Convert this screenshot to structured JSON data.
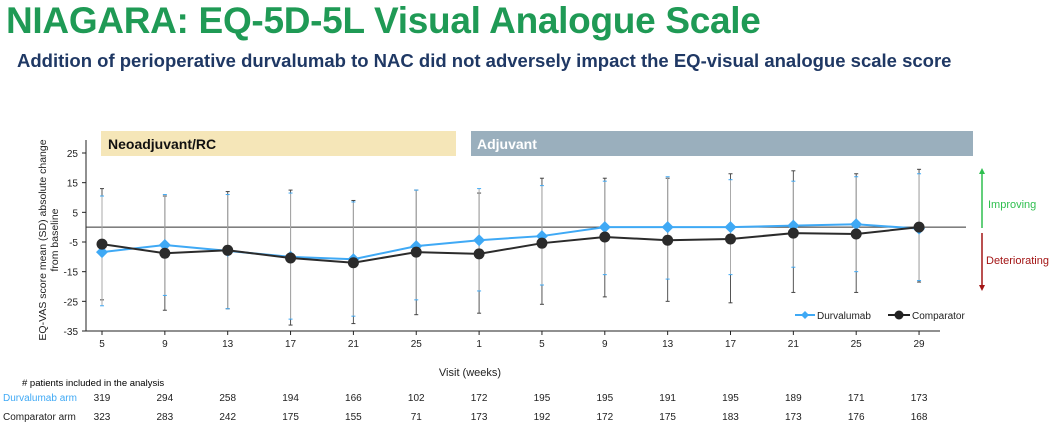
{
  "header": {
    "title": "NIAGARA: EQ-5D-5L Visual Analogue Scale",
    "subtitle": "Addition of perioperative durvalumab to NAC did not adversely impact the EQ-visual analogue scale score"
  },
  "chart_data": {
    "type": "line",
    "ylabel": "EQ-VAS score mean (SD) absolute change from baseline",
    "xlabel": "Visit (weeks)",
    "ylim": [
      -35,
      25
    ],
    "yticks": [
      "25",
      "15",
      "5",
      "-5",
      "-15",
      "-25",
      "-35"
    ],
    "ytick_values": [
      25,
      15,
      5,
      -5,
      -15,
      -25,
      -35
    ],
    "categories": [
      "5",
      "9",
      "13",
      "17",
      "21",
      "25",
      "1",
      "5",
      "9",
      "13",
      "17",
      "21",
      "25",
      "29"
    ],
    "phases": [
      {
        "label": "Neoadjuvant/RC",
        "color": "#f5e6b8"
      },
      {
        "label": "Adjuvant",
        "color": "#9aafbd"
      }
    ],
    "annotations": {
      "improving": "Improving",
      "deteriorating": "Deteriorating"
    },
    "legend_position": "bottom-right",
    "series": [
      {
        "name": "Durvalumab",
        "color": "#3fa9f5",
        "marker": "diamond",
        "values": [
          -8.4,
          -6,
          -8,
          -10,
          -10.8,
          -6.4,
          -4.4,
          -3,
          0,
          0,
          0,
          0.5,
          1,
          -0.5
        ],
        "upper": [
          10.5,
          11,
          11,
          11.5,
          8.5,
          12.5,
          13,
          14,
          15.5,
          17,
          16,
          15.5,
          17,
          18
        ],
        "lower": [
          -26.5,
          -23,
          -27.5,
          -31,
          -30,
          -24.5,
          -21.5,
          -19.5,
          -16,
          -17.5,
          -16,
          -13.5,
          -15,
          -18
        ]
      },
      {
        "name": "Comparator",
        "color": "#2b2b2b",
        "marker": "circle",
        "values": [
          -5.7,
          -8.8,
          -7.8,
          -10.4,
          -12,
          -8.4,
          -9,
          -5.4,
          -3.3,
          -4.4,
          -4,
          -2,
          -2.3,
          0
        ],
        "upper": [
          13,
          10.5,
          12,
          12.5,
          9,
          12.5,
          11.5,
          16.5,
          16.5,
          16.5,
          18,
          19,
          18,
          19.5
        ],
        "lower": [
          -24.5,
          -28,
          -27.5,
          -33,
          -32.5,
          -29.5,
          -29,
          -26,
          -23.5,
          -25,
          -25.5,
          -22,
          -22,
          -18.5
        ]
      }
    ]
  },
  "table": {
    "caption": "# patients included in the analysis",
    "rows": [
      {
        "label": "Durvalumab arm",
        "color": "#3fa9f5",
        "values": [
          "319",
          "294",
          "258",
          "194",
          "166",
          "102",
          "172",
          "195",
          "195",
          "191",
          "195",
          "189",
          "171",
          "173"
        ]
      },
      {
        "label": "Comparator arm",
        "color": "#222222",
        "values": [
          "323",
          "283",
          "242",
          "175",
          "155",
          "71",
          "173",
          "192",
          "172",
          "175",
          "183",
          "173",
          "176",
          "168"
        ]
      }
    ]
  }
}
